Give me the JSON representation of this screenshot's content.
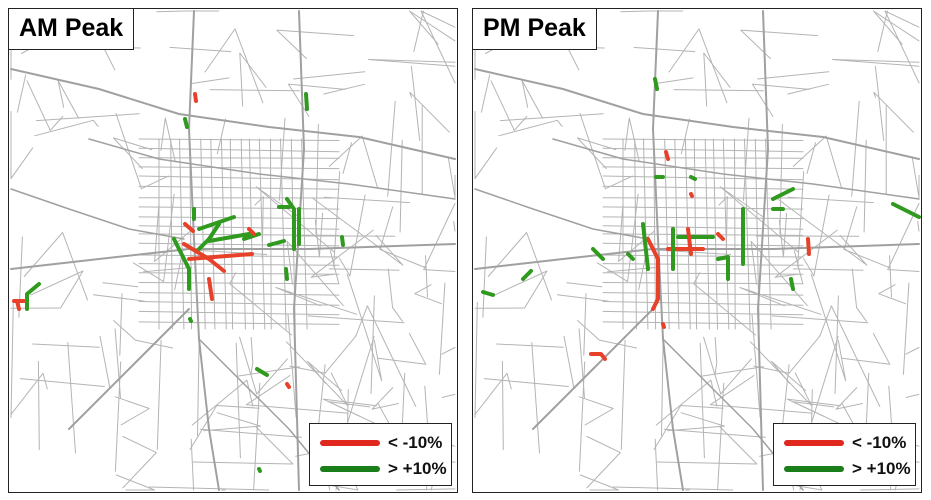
{
  "panels": [
    {
      "id": "am",
      "title": "AM Peak"
    },
    {
      "id": "pm",
      "title": "PM Peak"
    }
  ],
  "legend": {
    "items": [
      {
        "label": "< -10%",
        "color": "#e0281e"
      },
      {
        "label": "> +10%",
        "color": "#1a7f1a"
      }
    ]
  },
  "colors": {
    "road": "#b4b4b4",
    "highway": "#a0a0a0",
    "decrease": "#e8412a",
    "increase": "#2f9a1e"
  }
}
